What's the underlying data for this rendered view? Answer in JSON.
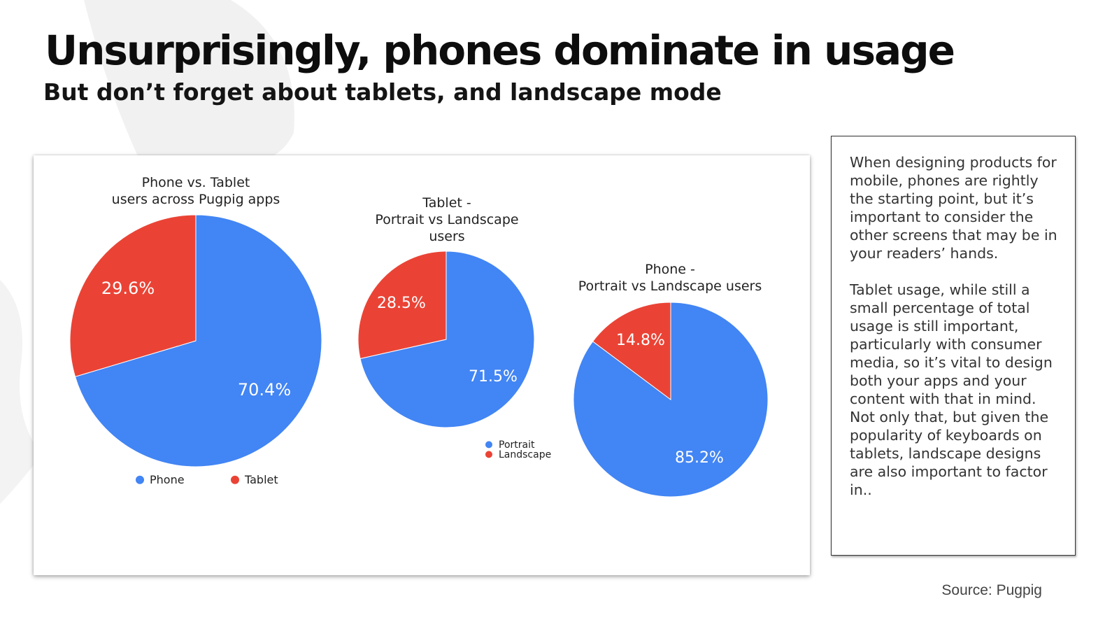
{
  "slide": {
    "title": "Unsurprisingly, phones dominate in usage",
    "subtitle": "But don’t forget about tablets, and landscape mode",
    "source": "Source: Pugpig"
  },
  "colors": {
    "blue": "#4285f4",
    "red": "#ea4335"
  },
  "side_panel": {
    "paragraph_1": "When designing products for mobile, phones are rightly the starting point, but it’s important to consider the other screens that may be in your readers’ hands.",
    "paragraph_2": "Tablet usage, while still a small percentage of total usage is still important, particularly with consumer media, so it’s vital to design both your apps and your content with that in mind. Not only that, but given the popularity of keyboards on tablets, landscape designs are also important to factor in.."
  },
  "chart_data": [
    {
      "type": "pie",
      "title_lines": [
        "Phone vs. Tablet",
        "users across Pugpig apps"
      ],
      "categories": [
        "Phone",
        "Tablet"
      ],
      "values": [
        70.4,
        29.6
      ],
      "labels": [
        "70.4%",
        "29.6%"
      ],
      "colors": [
        "#4285f4",
        "#ea4335"
      ],
      "legend": [
        "Phone",
        "Tablet"
      ],
      "legend_position": "bottom"
    },
    {
      "type": "pie",
      "title_lines": [
        "Tablet -",
        "Portrait vs Landscape",
        "users"
      ],
      "categories": [
        "Portrait",
        "Landscape"
      ],
      "values": [
        71.5,
        28.5
      ],
      "labels": [
        "71.5%",
        "28.5%"
      ],
      "colors": [
        "#4285f4",
        "#ea4335"
      ],
      "legend": [
        "Portrait",
        "Landscape"
      ],
      "legend_position": "bottom-right"
    },
    {
      "type": "pie",
      "title_lines": [
        "Phone -",
        "Portrait vs Landscape users"
      ],
      "categories": [
        "Portrait",
        "Landscape"
      ],
      "values": [
        85.2,
        14.8
      ],
      "labels": [
        "85.2%",
        "14.8%"
      ],
      "colors": [
        "#4285f4",
        "#ea4335"
      ],
      "legend": [],
      "legend_position": "none"
    }
  ]
}
